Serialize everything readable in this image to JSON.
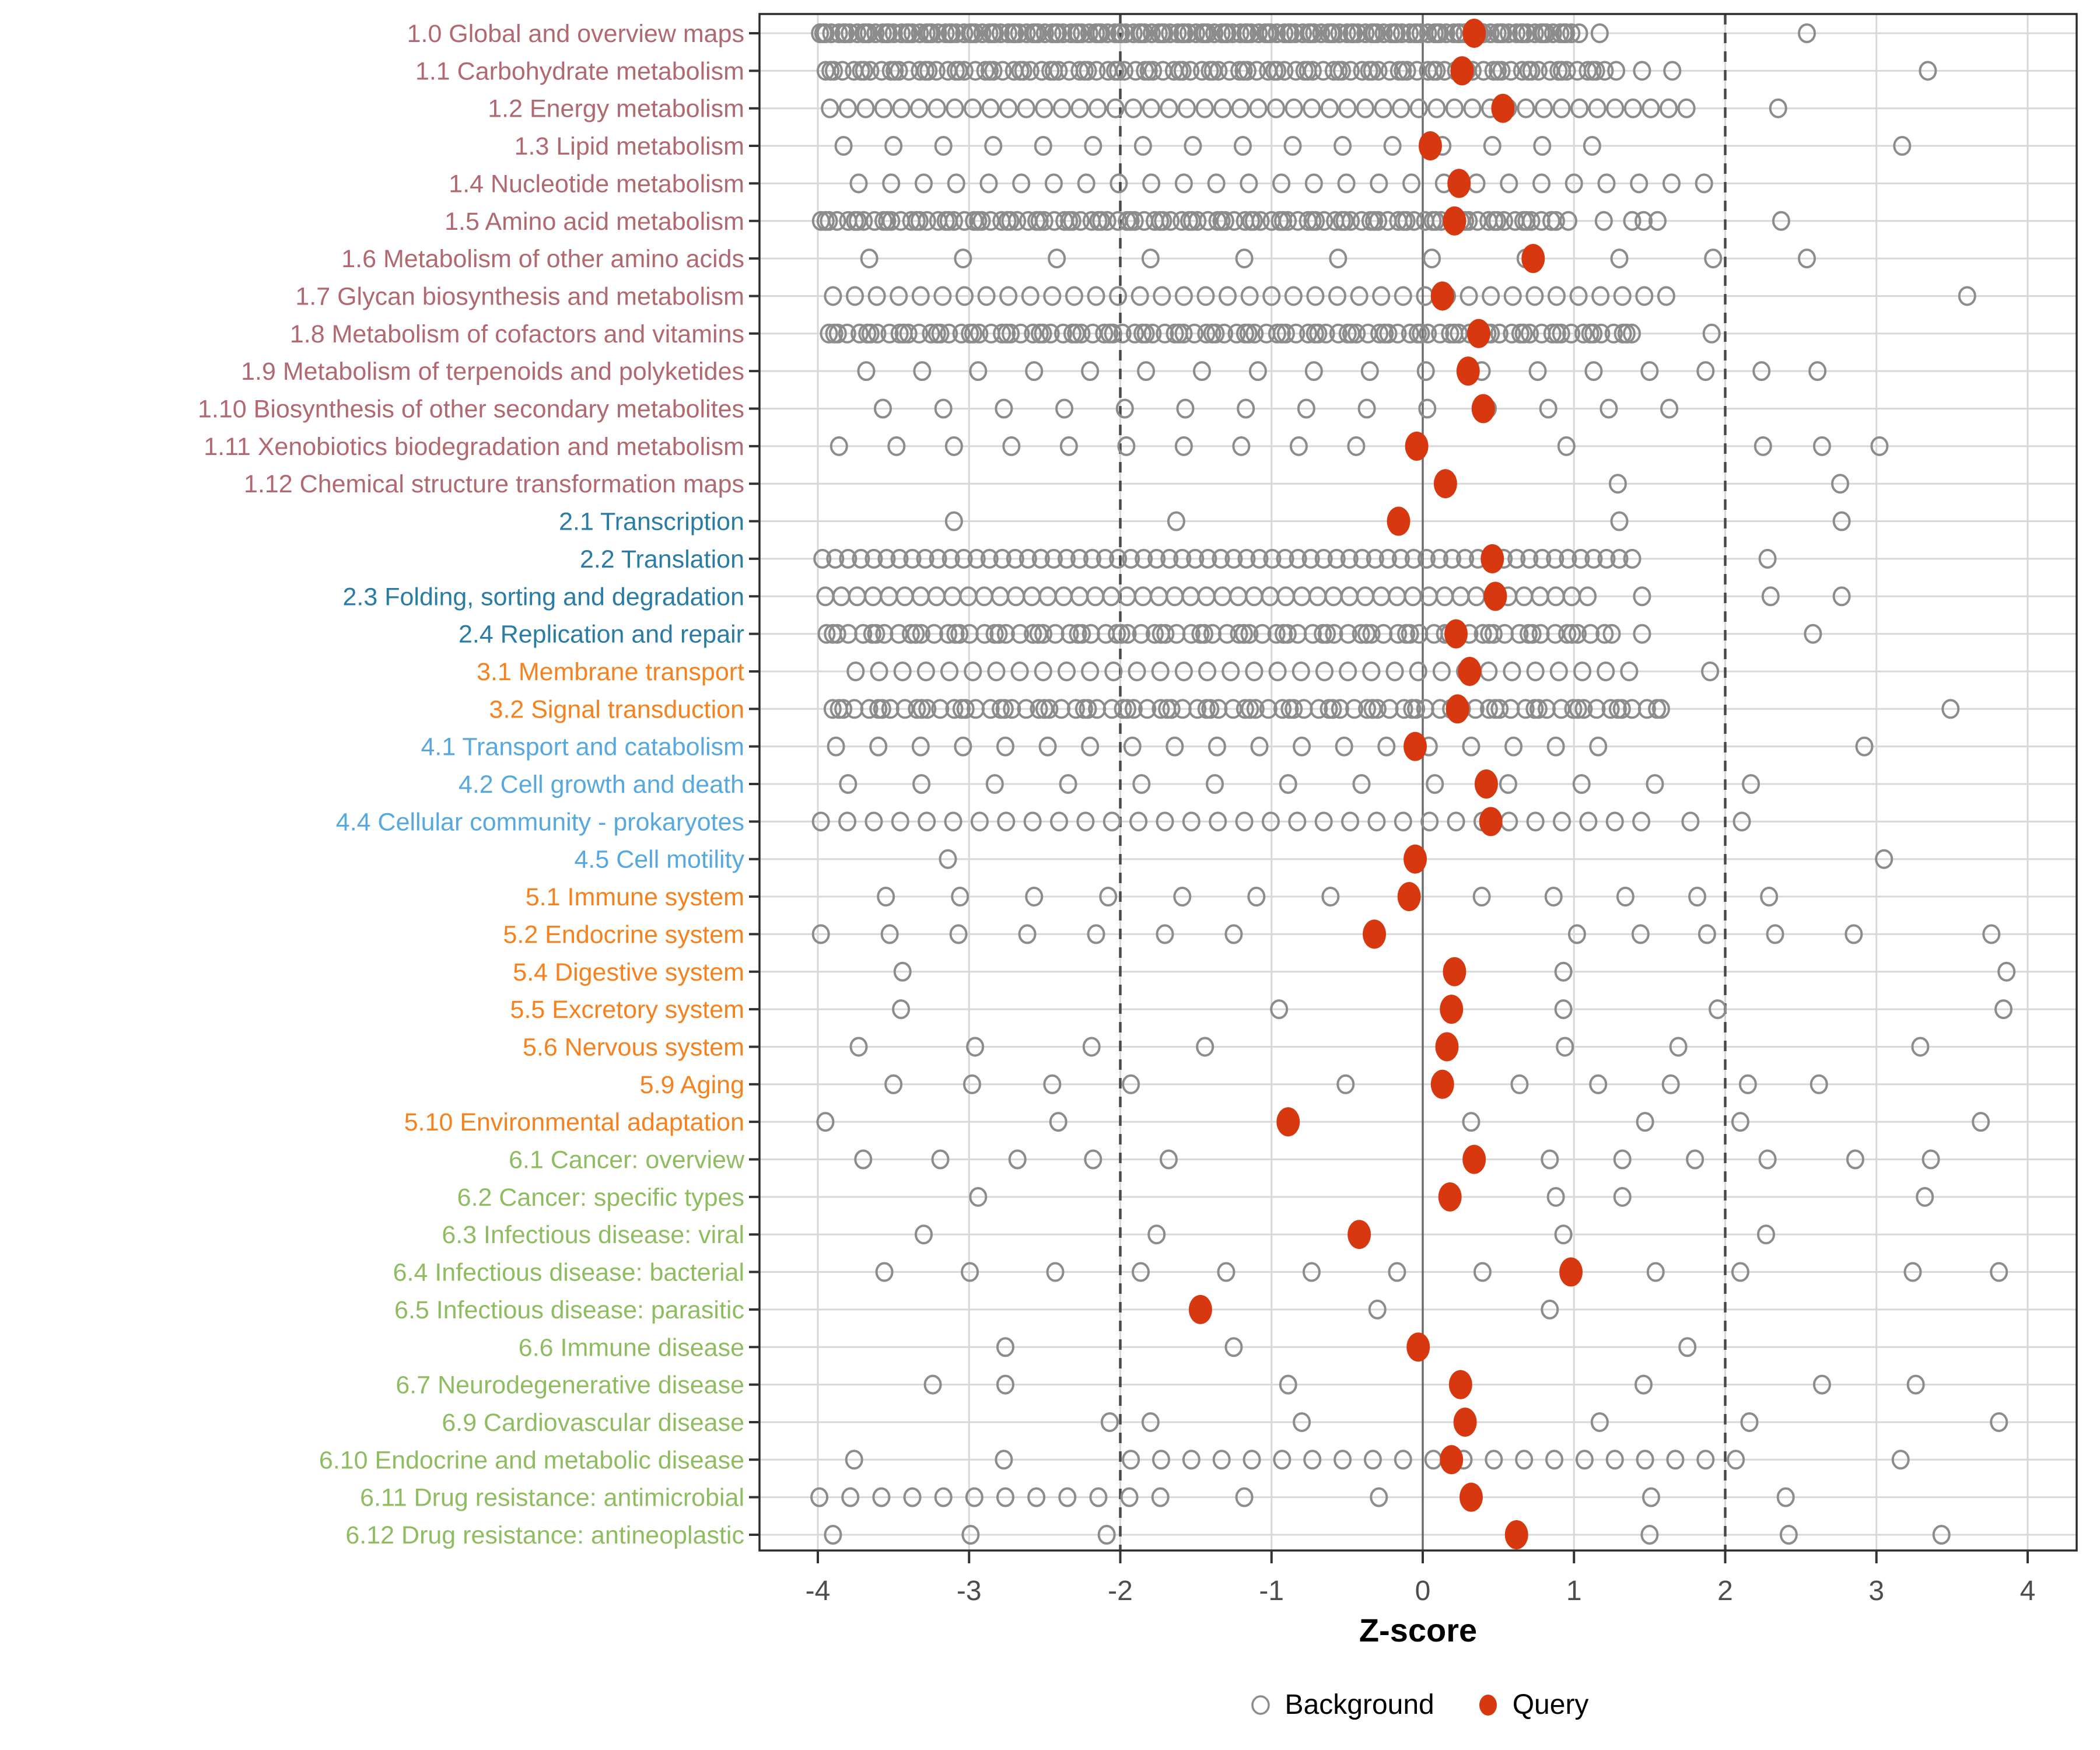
{
  "chart_data": {
    "type": "scatter",
    "title": "",
    "xlabel": "Z-score",
    "ylabel": "",
    "x_ticks": [
      -4,
      -3,
      -2,
      -1,
      0,
      1,
      2,
      3,
      4
    ],
    "xlim": [
      -4.38,
      4.32
    ],
    "grid": "on",
    "reference_lines": {
      "solid_at": 0,
      "dashed_at": [
        -2,
        2
      ]
    },
    "legend": [
      {
        "label": "Background",
        "marker": "open-circle"
      },
      {
        "label": "Query",
        "marker": "filled-circle"
      }
    ],
    "colors": {
      "query": "#D7380F",
      "background_stroke": "#8C8C8C",
      "grid_light": "#D8D8D8",
      "zero_line": "#6B6B6B",
      "dashed_line": "#4A4A4A",
      "axis_text": "#4D4D4D",
      "panel_border": "#2B2B2B",
      "group_1": "#B16970",
      "group_2": "#2B7CA4",
      "group_3": "#F5821F",
      "group_4": "#56A8DE",
      "group_5": "#F5821F",
      "group_6": "#8FBC61"
    },
    "rows": [
      {
        "label": "1.0 Global and overview maps",
        "group": "1",
        "query": 0.34,
        "bg": {
          "seg": [
            [
              -4.0,
              1.05,
              0.032
            ]
          ],
          "jitter": true,
          "pts": [
            1.17,
            2.54
          ]
        }
      },
      {
        "label": "1.1 Carbohydrate metabolism",
        "group": "1",
        "query": 0.26,
        "bg": {
          "seg": [
            [
              -3.97,
              1.3,
              0.048
            ]
          ],
          "jitter": true,
          "pts": [
            1.45,
            1.65,
            3.34
          ]
        }
      },
      {
        "label": "1.2 Energy metabolism",
        "group": "1",
        "query": 0.53,
        "bg": {
          "seg": [
            [
              -3.92,
              1.83,
              0.118
            ]
          ],
          "pts": [
            2.35
          ]
        }
      },
      {
        "label": "1.3 Lipid metabolism",
        "group": "1",
        "query": 0.05,
        "bg": {
          "seg": [
            [
              -3.83,
              1.34,
              0.33
            ]
          ],
          "pts": [
            3.17
          ]
        }
      },
      {
        "label": "1.4 Nucleotide metabolism",
        "group": "1",
        "query": 0.24,
        "bg": {
          "seg": [
            [
              -3.73,
              1.93,
              0.215
            ]
          ],
          "pts": []
        }
      },
      {
        "label": "1.5 Amino acid metabolism",
        "group": "1",
        "query": 0.21,
        "bg": {
          "seg": [
            [
              -4.0,
              0.9,
              0.046
            ],
            [
              1.02,
              1.63,
              0.15
            ]
          ],
          "jitter": true,
          "pts": [
            2.37
          ]
        }
      },
      {
        "label": "1.6 Metabolism of other amino acids",
        "group": "1",
        "query": 0.73,
        "bg": {
          "seg": [
            [
              -3.66,
              2.54,
              0.62
            ]
          ],
          "pts": []
        }
      },
      {
        "label": "1.7 Glycan biosynthesis and metabolism",
        "group": "1",
        "query": 0.13,
        "bg": {
          "seg": [
            [
              -3.9,
              1.65,
              0.145
            ]
          ],
          "pts": [
            3.6
          ]
        }
      },
      {
        "label": "1.8 Metabolism of cofactors and vitamins",
        "group": "1",
        "query": 0.37,
        "bg": {
          "seg": [
            [
              -3.95,
              1.45,
              0.052
            ]
          ],
          "jitter": true,
          "pts": [
            1.91
          ]
        }
      },
      {
        "label": "1.9 Metabolism of terpenoids and polyketides",
        "group": "1",
        "query": 0.3,
        "bg": {
          "seg": [
            [
              -3.68,
              2.65,
              0.37
            ]
          ],
          "pts": []
        }
      },
      {
        "label": "1.10 Biosynthesis of other secondary metabolites",
        "group": "1",
        "query": 0.4,
        "bg": {
          "seg": [
            [
              -3.57,
              1.7,
              0.4
            ]
          ],
          "pts": []
        }
      },
      {
        "label": "1.11 Xenobiotics biodegradation and metabolism",
        "group": "1",
        "query": -0.04,
        "bg": {
          "seg": [
            [
              -3.86,
              -0.44,
              0.38
            ]
          ],
          "pts": [
            0.95,
            2.25,
            2.64,
            3.02
          ]
        }
      },
      {
        "label": "1.12 Chemical structure transformation maps",
        "group": "1",
        "query": 0.15,
        "bg": {
          "pts": [
            1.29,
            2.76
          ]
        }
      },
      {
        "label": "2.1 Transcription",
        "group": "2",
        "query": -0.16,
        "bg": {
          "pts": [
            -3.1,
            -1.63,
            1.3,
            2.77
          ]
        }
      },
      {
        "label": "2.2 Translation",
        "group": "2",
        "query": 0.46,
        "bg": {
          "seg": [
            [
              -3.97,
              1.42,
              0.085
            ]
          ],
          "pts": [
            2.28
          ]
        }
      },
      {
        "label": "2.3 Folding, sorting and degradation",
        "group": "2",
        "query": 0.48,
        "bg": {
          "seg": [
            [
              -3.95,
              1.1,
              0.105
            ]
          ],
          "pts": [
            1.45,
            2.3,
            2.77
          ]
        }
      },
      {
        "label": "2.4 Replication and repair",
        "group": "2",
        "query": 0.22,
        "bg": {
          "seg": [
            [
              -3.97,
              1.25,
              0.062
            ]
          ],
          "jitter": true,
          "pts": [
            1.45,
            2.58
          ]
        }
      },
      {
        "label": "3.1 Membrane transport",
        "group": "3",
        "query": 0.31,
        "bg": {
          "seg": [
            [
              -3.75,
              1.45,
              0.155
            ]
          ],
          "pts": [
            1.9
          ]
        }
      },
      {
        "label": "3.2 Signal transduction",
        "group": "3",
        "query": 0.23,
        "bg": {
          "seg": [
            [
              -3.93,
              1.6,
              0.062
            ]
          ],
          "jitter": true,
          "pts": [
            3.49
          ]
        }
      },
      {
        "label": "4.1 Transport and catabolism",
        "group": "4",
        "query": -0.05,
        "bg": {
          "seg": [
            [
              -3.88,
              1.4,
              0.28
            ]
          ],
          "pts": [
            2.92
          ]
        }
      },
      {
        "label": "4.2 Cell growth and death",
        "group": "4",
        "query": 0.42,
        "bg": {
          "seg": [
            [
              -3.8,
              1.55,
              0.485
            ]
          ],
          "pts": [
            2.17
          ]
        }
      },
      {
        "label": "4.4 Cellular community - prokaryotes",
        "group": "4",
        "query": 0.45,
        "bg": {
          "seg": [
            [
              -3.98,
              1.45,
              0.175
            ]
          ],
          "pts": [
            1.77,
            2.11
          ]
        }
      },
      {
        "label": "4.5 Cell motility",
        "group": "4",
        "query": -0.05,
        "bg": {
          "pts": [
            -3.14,
            3.05
          ]
        }
      },
      {
        "label": "5.1 Immune system",
        "group": "5",
        "query": -0.09,
        "bg": {
          "seg": [
            [
              -3.55,
              -0.61,
              0.49
            ],
            [
              0.39,
              2.29,
              0.475
            ]
          ],
          "pts": []
        }
      },
      {
        "label": "5.2 Endocrine system",
        "group": "5",
        "query": -0.32,
        "bg": {
          "seg": [
            [
              -3.98,
              -0.8,
              0.455
            ]
          ],
          "pts": [
            1.02,
            1.44,
            1.88,
            2.33,
            2.85,
            3.76
          ]
        }
      },
      {
        "label": "5.4 Digestive system",
        "group": "5",
        "query": 0.21,
        "bg": {
          "pts": [
            -3.44,
            0.93,
            3.86
          ]
        }
      },
      {
        "label": "5.5 Excretory system",
        "group": "5",
        "query": 0.19,
        "bg": {
          "pts": [
            -3.45,
            -0.95,
            0.93,
            1.95,
            3.84
          ]
        }
      },
      {
        "label": "5.6 Nervous system",
        "group": "5",
        "query": 0.16,
        "bg": {
          "pts": [
            -3.73,
            -2.96,
            -2.19,
            -1.44,
            0.94,
            1.69,
            3.29
          ]
        }
      },
      {
        "label": "5.9 Aging",
        "group": "5",
        "query": 0.13,
        "bg": {
          "pts": [
            -3.5,
            -2.98,
            -2.45,
            -1.93,
            -0.51,
            0.64,
            1.16,
            1.64,
            2.15,
            2.62
          ]
        }
      },
      {
        "label": "5.10 Environmental adaptation",
        "group": "5",
        "query": -0.89,
        "bg": {
          "pts": [
            -3.95,
            -2.41,
            0.32,
            1.47,
            2.1,
            3.69
          ]
        }
      },
      {
        "label": "6.1 Cancer: overview",
        "group": "6",
        "query": 0.34,
        "bg": {
          "pts": [
            -3.7,
            -3.19,
            -2.68,
            -2.18,
            -1.68,
            0.84,
            1.32,
            1.8,
            2.28,
            2.86,
            3.36
          ]
        }
      },
      {
        "label": "6.2 Cancer: specific types",
        "group": "6",
        "query": 0.18,
        "bg": {
          "pts": [
            -2.94,
            0.88,
            1.32,
            3.32
          ]
        }
      },
      {
        "label": "6.3 Infectious disease: viral",
        "group": "6",
        "query": -0.42,
        "bg": {
          "pts": [
            -3.3,
            -1.76,
            0.93,
            2.27
          ]
        }
      },
      {
        "label": "6.4 Infectious disease: bacterial",
        "group": "6",
        "query": 0.98,
        "bg": {
          "seg": [
            [
              -3.56,
              0.4,
              0.565
            ]
          ],
          "pts": [
            1.54,
            2.1,
            3.24,
            3.81
          ]
        }
      },
      {
        "label": "6.5 Infectious disease: parasitic",
        "group": "6",
        "query": -1.47,
        "bg": {
          "pts": [
            -0.3,
            0.84
          ]
        }
      },
      {
        "label": "6.6 Immune disease",
        "group": "6",
        "query": -0.03,
        "bg": {
          "pts": [
            -2.76,
            -1.25,
            1.75
          ]
        }
      },
      {
        "label": "6.7 Neurodegenerative disease",
        "group": "6",
        "query": 0.25,
        "bg": {
          "pts": [
            -3.24,
            -2.76,
            -0.89,
            1.46,
            2.64,
            3.26
          ]
        }
      },
      {
        "label": "6.9 Cardiovascular disease",
        "group": "6",
        "query": 0.28,
        "bg": {
          "pts": [
            -2.07,
            -1.8,
            -0.8,
            1.17,
            2.16,
            3.81
          ]
        }
      },
      {
        "label": "6.10 Endocrine and metabolic disease",
        "group": "6",
        "query": 0.19,
        "bg": {
          "seg": [
            [
              -1.93,
              2.08,
              0.2
            ]
          ],
          "pts": [
            -3.76,
            -2.77,
            3.16
          ]
        }
      },
      {
        "label": "6.11 Drug resistance: antimicrobial",
        "group": "6",
        "query": 0.32,
        "bg": {
          "seg": [
            [
              -3.99,
              -1.73,
              0.205
            ]
          ],
          "pts": [
            -1.18,
            -0.29,
            1.51,
            2.4
          ]
        }
      },
      {
        "label": "6.12 Drug resistance: antineoplastic",
        "group": "6",
        "query": 0.62,
        "bg": {
          "pts": [
            -3.9,
            -2.99,
            -2.09,
            1.5,
            2.42,
            3.43
          ]
        }
      }
    ]
  }
}
